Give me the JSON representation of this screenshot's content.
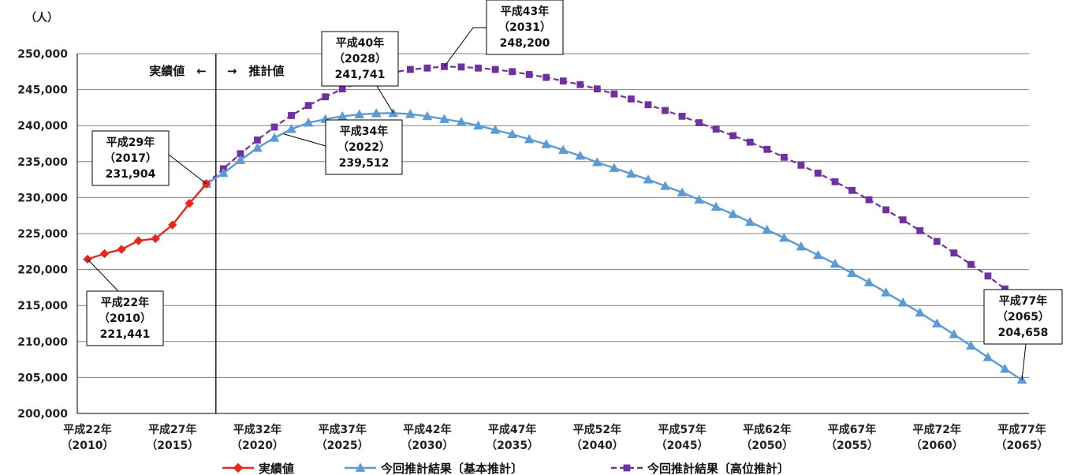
{
  "chart_data": {
    "type": "line",
    "unit_label": "（人）",
    "ylim": [
      200000,
      250000
    ],
    "y_ticks": [
      "200,000",
      "205,000",
      "210,000",
      "215,000",
      "220,000",
      "225,000",
      "230,000",
      "235,000",
      "240,000",
      "245,000",
      "250,000"
    ],
    "x_range": [
      2010,
      2065
    ],
    "x_ticks": [
      {
        "year": 2010,
        "era": "平成22年",
        "western": "（2010）"
      },
      {
        "year": 2015,
        "era": "平成27年",
        "western": "（2015）"
      },
      {
        "year": 2020,
        "era": "平成32年",
        "western": "（2020）"
      },
      {
        "year": 2025,
        "era": "平成37年",
        "western": "（2025）"
      },
      {
        "year": 2030,
        "era": "平成42年",
        "western": "（2030）"
      },
      {
        "year": 2035,
        "era": "平成47年",
        "western": "（2035）"
      },
      {
        "year": 2040,
        "era": "平成52年",
        "western": "（2040）"
      },
      {
        "year": 2045,
        "era": "平成57年",
        "western": "（2045）"
      },
      {
        "year": 2050,
        "era": "平成62年",
        "western": "（2050）"
      },
      {
        "year": 2055,
        "era": "平成67年",
        "western": "（2055）"
      },
      {
        "year": 2060,
        "era": "平成72年",
        "western": "（2060）"
      },
      {
        "year": 2065,
        "era": "平成77年",
        "western": "（2065）"
      }
    ],
    "divider": {
      "year": 2017,
      "left_label": "実績値　←",
      "right_label": "→　推計値"
    },
    "grid": true,
    "legend_position": "bottom",
    "series": [
      {
        "name": "実績値",
        "color": "#e8261b",
        "marker": "diamond",
        "x": [
          2010,
          2011,
          2012,
          2013,
          2014,
          2015,
          2016,
          2017
        ],
        "values": [
          221441,
          222200,
          222800,
          224000,
          224300,
          226200,
          229200,
          231904
        ]
      },
      {
        "name": "今回推計結果〔基本推計〕",
        "color": "#5b9bd5",
        "marker": "triangle",
        "x": [
          2017,
          2018,
          2019,
          2020,
          2021,
          2022,
          2023,
          2024,
          2025,
          2026,
          2027,
          2028,
          2029,
          2030,
          2031,
          2032,
          2033,
          2034,
          2035,
          2036,
          2037,
          2038,
          2039,
          2040,
          2041,
          2042,
          2043,
          2044,
          2045,
          2046,
          2047,
          2048,
          2049,
          2050,
          2051,
          2052,
          2053,
          2054,
          2055,
          2056,
          2057,
          2058,
          2059,
          2060,
          2061,
          2062,
          2063,
          2064,
          2065
        ],
        "values": [
          231904,
          233400,
          235200,
          236900,
          238300,
          239512,
          240400,
          240900,
          241300,
          241550,
          241700,
          241741,
          241600,
          241300,
          240900,
          240500,
          240000,
          239400,
          238800,
          238100,
          237400,
          236600,
          235800,
          234900,
          234100,
          233300,
          232500,
          231600,
          230700,
          229700,
          228700,
          227700,
          226600,
          225500,
          224400,
          223200,
          222000,
          220800,
          219500,
          218200,
          216800,
          215400,
          214000,
          212500,
          211000,
          209400,
          207800,
          206200,
          204658
        ]
      },
      {
        "name": "今回推計結果〔高位推計〕",
        "color": "#7030a0",
        "marker": "square",
        "x": [
          2017,
          2018,
          2019,
          2020,
          2021,
          2022,
          2023,
          2024,
          2025,
          2026,
          2027,
          2028,
          2029,
          2030,
          2031,
          2032,
          2033,
          2034,
          2035,
          2036,
          2037,
          2038,
          2039,
          2040,
          2041,
          2042,
          2043,
          2044,
          2045,
          2046,
          2047,
          2048,
          2049,
          2050,
          2051,
          2052,
          2053,
          2054,
          2055,
          2056,
          2057,
          2058,
          2059,
          2060,
          2061,
          2062,
          2063,
          2064
        ],
        "values": [
          231904,
          234000,
          236100,
          238000,
          239800,
          241400,
          242800,
          244000,
          245100,
          246000,
          246800,
          247400,
          247800,
          248000,
          248200,
          248150,
          248000,
          247800,
          247500,
          247100,
          246700,
          246200,
          245700,
          245100,
          244400,
          243700,
          242900,
          242100,
          241300,
          240400,
          239500,
          238600,
          237700,
          236700,
          235600,
          234500,
          233400,
          232200,
          231000,
          229700,
          228300,
          226900,
          225400,
          223900,
          222300,
          220700,
          219100,
          217300
        ]
      }
    ],
    "annotations": [
      {
        "id": "h22",
        "lines": [
          "平成22年",
          "（2010）",
          "221,441"
        ],
        "anchor_year": 2010,
        "anchor_value": 221441
      },
      {
        "id": "h29",
        "lines": [
          "平成29年",
          "（2017）",
          "231,904"
        ],
        "anchor_year": 2017,
        "anchor_value": 231904
      },
      {
        "id": "h34",
        "lines": [
          "平成34年",
          "（2022）",
          "239,512"
        ],
        "anchor_year": 2022,
        "anchor_value": 239512
      },
      {
        "id": "h40",
        "lines": [
          "平成40年",
          "（2028）",
          "241,741"
        ],
        "anchor_year": 2028,
        "anchor_value": 241741
      },
      {
        "id": "h43",
        "lines": [
          "平成43年",
          "（2031）",
          "248,200"
        ],
        "anchor_year": 2031,
        "anchor_value": 248200
      },
      {
        "id": "h77",
        "lines": [
          "平成77年",
          "（2065）",
          "204,658"
        ],
        "anchor_year": 2065,
        "anchor_value": 204658
      }
    ]
  }
}
